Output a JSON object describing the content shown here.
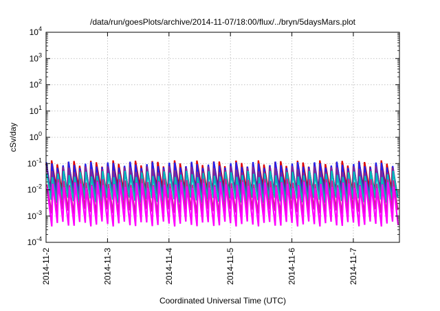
{
  "chart_data": {
    "type": "line",
    "title": "/data/run/goesPlots/archive/2014-11-07/18:00/flux/../bryn/5daysMars.plot",
    "xlabel": "Coordinated Universal Time (UTC)",
    "ylabel": "cSv/day",
    "yscale": "log",
    "ylim": [
      0.0001,
      10000
    ],
    "xlim": [
      "2014-11-02T00:00",
      "2014-11-07T18:00"
    ],
    "grid": true,
    "legend": "none",
    "x_tick_labels": [
      "2014-11-2",
      "2014-11-3",
      "2014-11-4",
      "2014-11-5",
      "2014-11-6",
      "2014-11-7"
    ],
    "y_ticks": [
      {
        "base": "10",
        "exp": "-4"
      },
      {
        "base": "10",
        "exp": "-3"
      },
      {
        "base": "10",
        "exp": "-2"
      },
      {
        "base": "10",
        "exp": "-1"
      },
      {
        "base": "10",
        "exp": "0"
      },
      {
        "base": "10",
        "exp": "1"
      },
      {
        "base": "10",
        "exp": "2"
      },
      {
        "base": "10",
        "exp": "3"
      },
      {
        "base": "10",
        "exp": "4"
      }
    ],
    "sawtooth_cycles_per_day": 11,
    "series": [
      {
        "color": "#dd0000",
        "peak": 0.1,
        "trough": 0.01
      },
      {
        "color": "#2222ee",
        "peak": 0.09,
        "trough": 0.006
      },
      {
        "color": "#7a2aa0",
        "peak": 0.06,
        "trough": 0.005
      },
      {
        "color": "#00bbbb",
        "peak": 0.04,
        "trough": 0.004
      },
      {
        "color": "#cc2299",
        "peak": 0.02,
        "trough": 0.0015
      },
      {
        "color": "#ff00ff",
        "peak": 0.015,
        "trough": 0.0005
      }
    ]
  }
}
